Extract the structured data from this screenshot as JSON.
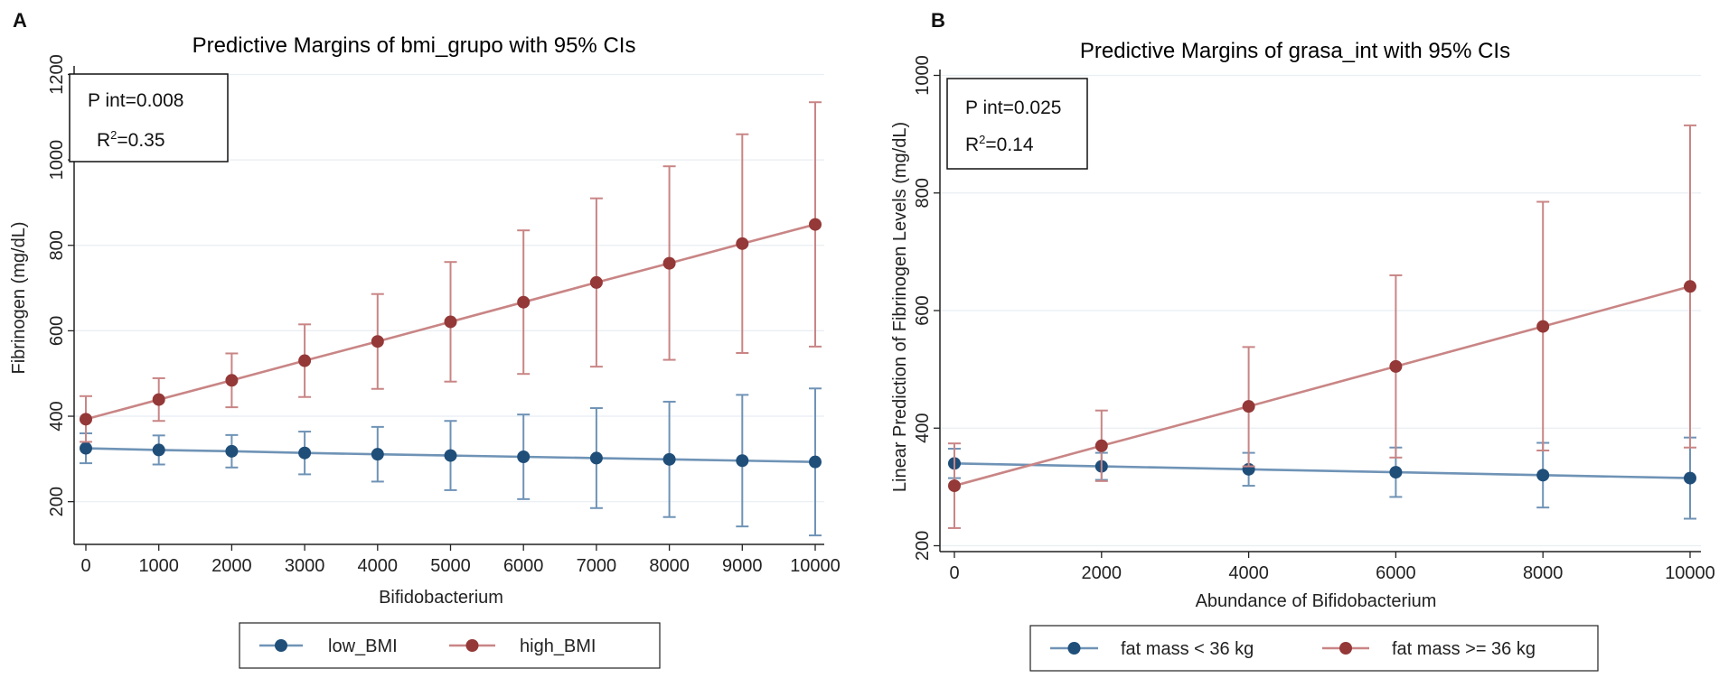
{
  "colors": {
    "low": "#1f4e79",
    "high": "#943838",
    "low_ci": "#6f93b6",
    "high_ci": "#c98585",
    "title": "#3b4a9c",
    "grid": "#e8eef3",
    "axis": "#222222"
  },
  "chart_data": [
    {
      "panel": "A",
      "type": "line",
      "title": "Predictive Margins of bmi_grupo with 95% CIs",
      "xlabel": "Bifidobacterium",
      "ylabel": "Fibrinogen (mg/dL)",
      "stats": {
        "p_label": "P int=0.008",
        "r2_prefix": "R",
        "r2_sup": "2",
        "r2_value": "=0.35"
      },
      "xlim": [
        0,
        10000
      ],
      "ylim": [
        100,
        1220
      ],
      "x_ticks": [
        0,
        1000,
        2000,
        3000,
        4000,
        5000,
        6000,
        7000,
        8000,
        9000,
        10000
      ],
      "x_tick_labels": [
        "0",
        "1000",
        "2000",
        "3000",
        "4000",
        "5000",
        "6000",
        "7000",
        "8000",
        "9000",
        "10000"
      ],
      "y_ticks": [
        200,
        400,
        600,
        800,
        1000,
        1200
      ],
      "y_tick_labels": [
        "200",
        "400",
        "600",
        "800",
        "1000",
        "1200"
      ],
      "x": [
        0,
        1000,
        2000,
        3000,
        4000,
        5000,
        6000,
        7000,
        8000,
        9000,
        10000
      ],
      "series": [
        {
          "name": "low_BMI",
          "color_key": "low",
          "values": [
            325,
            321,
            318,
            314,
            311,
            308,
            305,
            302,
            299,
            296,
            293
          ],
          "ci_low": [
            290,
            287,
            280,
            264,
            247,
            227,
            206,
            185,
            164,
            142,
            121
          ],
          "ci_high": [
            360,
            355,
            356,
            364,
            375,
            389,
            404,
            419,
            434,
            450,
            465
          ]
        },
        {
          "name": "high_BMI",
          "color_key": "high",
          "values": [
            393,
            439,
            484,
            530,
            575,
            621,
            667,
            713,
            758,
            804,
            849
          ],
          "ci_low": [
            340,
            389,
            421,
            445,
            464,
            481,
            499,
            516,
            532,
            548,
            563
          ],
          "ci_high": [
            447,
            489,
            547,
            615,
            686,
            761,
            835,
            910,
            985,
            1060,
            1135
          ]
        }
      ],
      "legend": {
        "placement": "bottom-center",
        "entries": [
          "low_BMI",
          "high_BMI"
        ]
      }
    },
    {
      "panel": "B",
      "type": "line",
      "title": "Predictive Margins of grasa_int with 95% CIs",
      "xlabel": "Abundance of Bifidobacterium",
      "ylabel": "Linear Prediction of Fibrinogen Levels (mg/dL)",
      "stats": {
        "p_label": "P int=0.025",
        "r2_prefix": "R",
        "r2_sup": "2",
        "r2_value": "=0.14"
      },
      "xlim": [
        0,
        10000
      ],
      "ylim": [
        190,
        1010
      ],
      "x_ticks": [
        0,
        2000,
        4000,
        6000,
        8000,
        10000
      ],
      "x_tick_labels": [
        "0",
        "2000",
        "4000",
        "6000",
        "8000",
        "10000"
      ],
      "y_ticks": [
        200,
        400,
        600,
        800,
        1000
      ],
      "y_tick_labels": [
        "200",
        "400",
        "600",
        "800",
        "1000"
      ],
      "x": [
        0,
        2000,
        4000,
        6000,
        8000,
        10000
      ],
      "series": [
        {
          "name": "fat mass < 36 kg",
          "color_key": "low",
          "values": [
            340,
            335,
            330,
            325,
            320,
            315
          ],
          "ci_low": [
            315,
            312,
            302,
            283,
            265,
            246
          ],
          "ci_high": [
            365,
            358,
            358,
            367,
            375,
            384
          ]
        },
        {
          "name": "fat mass >= 36 kg",
          "color_key": "high",
          "values": [
            302,
            370,
            437,
            505,
            573,
            641
          ],
          "ci_low": [
            230,
            310,
            335,
            350,
            362,
            367
          ],
          "ci_high": [
            374,
            430,
            538,
            660,
            785,
            915
          ]
        }
      ],
      "legend": {
        "placement": "bottom-center",
        "entries": [
          "fat mass < 36 kg",
          "fat mass >= 36 kg"
        ]
      }
    }
  ]
}
